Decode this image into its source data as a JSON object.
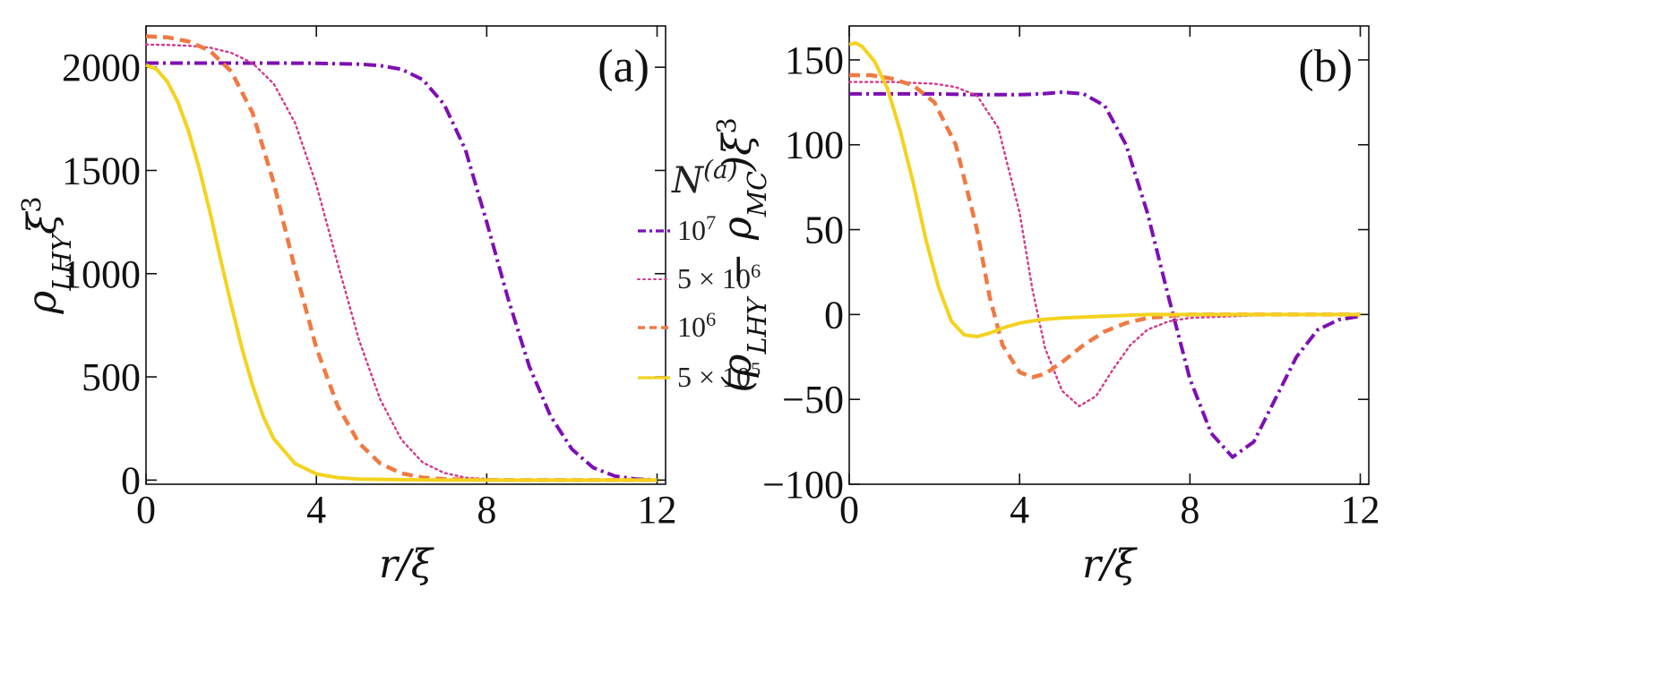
{
  "chart_data": [
    {
      "panel": "(a)",
      "type": "line",
      "title": "",
      "xlabel": "r/ξ",
      "ylabel": "ρ_LHY ξ³",
      "xlim": [
        0,
        12.2
      ],
      "ylim": [
        -20,
        2200
      ],
      "xticks": [
        0,
        4,
        8,
        12
      ],
      "xtick_labels": [
        "0",
        "4",
        "8",
        "12"
      ],
      "yticks": [
        0,
        500,
        1000,
        1500,
        2000
      ],
      "ytick_labels": [
        "0",
        "500",
        "1000",
        "1500",
        "2000"
      ],
      "grid": false,
      "legend": {
        "placement": "right-center",
        "title": "N^(a)",
        "entries": [
          "10^7",
          "5 × 10^6",
          "10^6",
          "5 × 10^5"
        ]
      },
      "series": [
        {
          "name": "10^7",
          "color": "#7e0fb2",
          "style": "dashdot",
          "x": [
            0,
            1,
            2,
            3,
            4,
            5,
            5.5,
            6,
            6.5,
            7,
            7.5,
            8,
            8.5,
            9,
            9.5,
            10,
            10.5,
            11,
            11.5,
            12
          ],
          "y": [
            2020,
            2020,
            2020,
            2020,
            2019,
            2015,
            2008,
            1990,
            1940,
            1820,
            1600,
            1250,
            880,
            550,
            310,
            150,
            60,
            20,
            5,
            0
          ]
        },
        {
          "name": "5 × 10^6",
          "color": "#d23a8c",
          "style": "dotted",
          "x": [
            0,
            0.5,
            1,
            1.5,
            2,
            2.5,
            3,
            3.5,
            4,
            4.5,
            5,
            5.5,
            6,
            6.5,
            7,
            7.5,
            8,
            9,
            10,
            11,
            12
          ],
          "y": [
            2110,
            2108,
            2104,
            2095,
            2070,
            2020,
            1920,
            1730,
            1430,
            1050,
            680,
            390,
            195,
            85,
            35,
            12,
            5,
            1,
            0,
            0,
            0
          ]
        },
        {
          "name": "10^6",
          "color": "#f07a43",
          "style": "dashed",
          "x": [
            0,
            0.5,
            1,
            1.5,
            2,
            2.5,
            3,
            3.5,
            4,
            4.5,
            5,
            5.5,
            6,
            6.5,
            7,
            8,
            9,
            10,
            11,
            12
          ],
          "y": [
            2150,
            2145,
            2125,
            2080,
            1980,
            1780,
            1440,
            1020,
            640,
            360,
            180,
            80,
            33,
            12,
            5,
            1,
            0,
            0,
            0,
            0
          ]
        },
        {
          "name": "5 × 10^5",
          "color": "#f4d21f",
          "style": "solid",
          "x": [
            0,
            0.25,
            0.5,
            0.75,
            1,
            1.25,
            1.5,
            1.75,
            2,
            2.25,
            2.5,
            2.75,
            3,
            3.5,
            4,
            4.5,
            5,
            6,
            7,
            8,
            10,
            12
          ],
          "y": [
            2010,
            1990,
            1930,
            1830,
            1690,
            1510,
            1300,
            1070,
            850,
            640,
            460,
            310,
            200,
            80,
            30,
            12,
            5,
            2,
            0,
            0,
            0,
            0
          ]
        }
      ]
    },
    {
      "panel": "(b)",
      "type": "line",
      "title": "",
      "xlabel": "r/ξ",
      "ylabel": "(ρ_LHY − ρ_MC)ξ³",
      "xlim": [
        0,
        12.2
      ],
      "ylim": [
        -100,
        170
      ],
      "xticks": [
        0,
        4,
        8,
        12
      ],
      "xtick_labels": [
        "0",
        "4",
        "8",
        "12"
      ],
      "yticks": [
        -100,
        -50,
        0,
        50,
        100,
        150
      ],
      "ytick_labels": [
        "−100",
        "−50",
        "0",
        "50",
        "100",
        "150"
      ],
      "grid": false,
      "series": [
        {
          "name": "10^7",
          "color": "#7e0fb2",
          "style": "dashdot",
          "x": [
            0,
            1,
            2,
            3,
            4,
            4.5,
            5,
            5.5,
            6,
            6.5,
            7,
            7.5,
            8,
            8.5,
            9,
            9.5,
            10,
            10.5,
            11,
            11.5,
            12
          ],
          "y": [
            130,
            130,
            130,
            129.5,
            129.5,
            130,
            131,
            130,
            123,
            100,
            60,
            10,
            -38,
            -70,
            -84,
            -75,
            -50,
            -25,
            -9,
            -3,
            -1
          ]
        },
        {
          "name": "5 × 10^6",
          "color": "#d23a8c",
          "style": "dotted",
          "x": [
            0,
            1,
            2,
            2.5,
            3,
            3.5,
            4,
            4.3,
            4.6,
            5,
            5.4,
            5.8,
            6.2,
            6.6,
            7,
            7.5,
            8,
            9,
            10,
            11,
            12
          ],
          "y": [
            137,
            137,
            136,
            134,
            129,
            110,
            60,
            15,
            -20,
            -45,
            -54,
            -48,
            -32,
            -18,
            -9,
            -4,
            -2,
            -1,
            0,
            0,
            0
          ]
        },
        {
          "name": "10^6",
          "color": "#f07a43",
          "style": "dashed",
          "x": [
            0,
            0.5,
            1,
            1.5,
            2,
            2.5,
            3,
            3.3,
            3.6,
            4,
            4.3,
            4.6,
            5,
            5.5,
            6,
            6.5,
            7,
            8,
            9,
            10,
            12
          ],
          "y": [
            141,
            141,
            139,
            135,
            125,
            100,
            50,
            10,
            -18,
            -34,
            -37,
            -35,
            -28,
            -18,
            -10,
            -5,
            -2,
            0,
            0,
            0,
            0
          ]
        },
        {
          "name": "5 × 10^5",
          "color": "#f4d21f",
          "style": "solid",
          "x": [
            0,
            0.15,
            0.3,
            0.6,
            0.9,
            1.2,
            1.5,
            1.8,
            2.1,
            2.4,
            2.7,
            3,
            3.3,
            3.6,
            4,
            4.5,
            5,
            6,
            7,
            8,
            10,
            12
          ],
          "y": [
            159,
            160,
            158,
            149,
            133,
            108,
            78,
            44,
            16,
            -4,
            -12,
            -13,
            -11,
            -8,
            -5,
            -3,
            -2,
            -1,
            0,
            0,
            0,
            0
          ]
        }
      ]
    }
  ]
}
